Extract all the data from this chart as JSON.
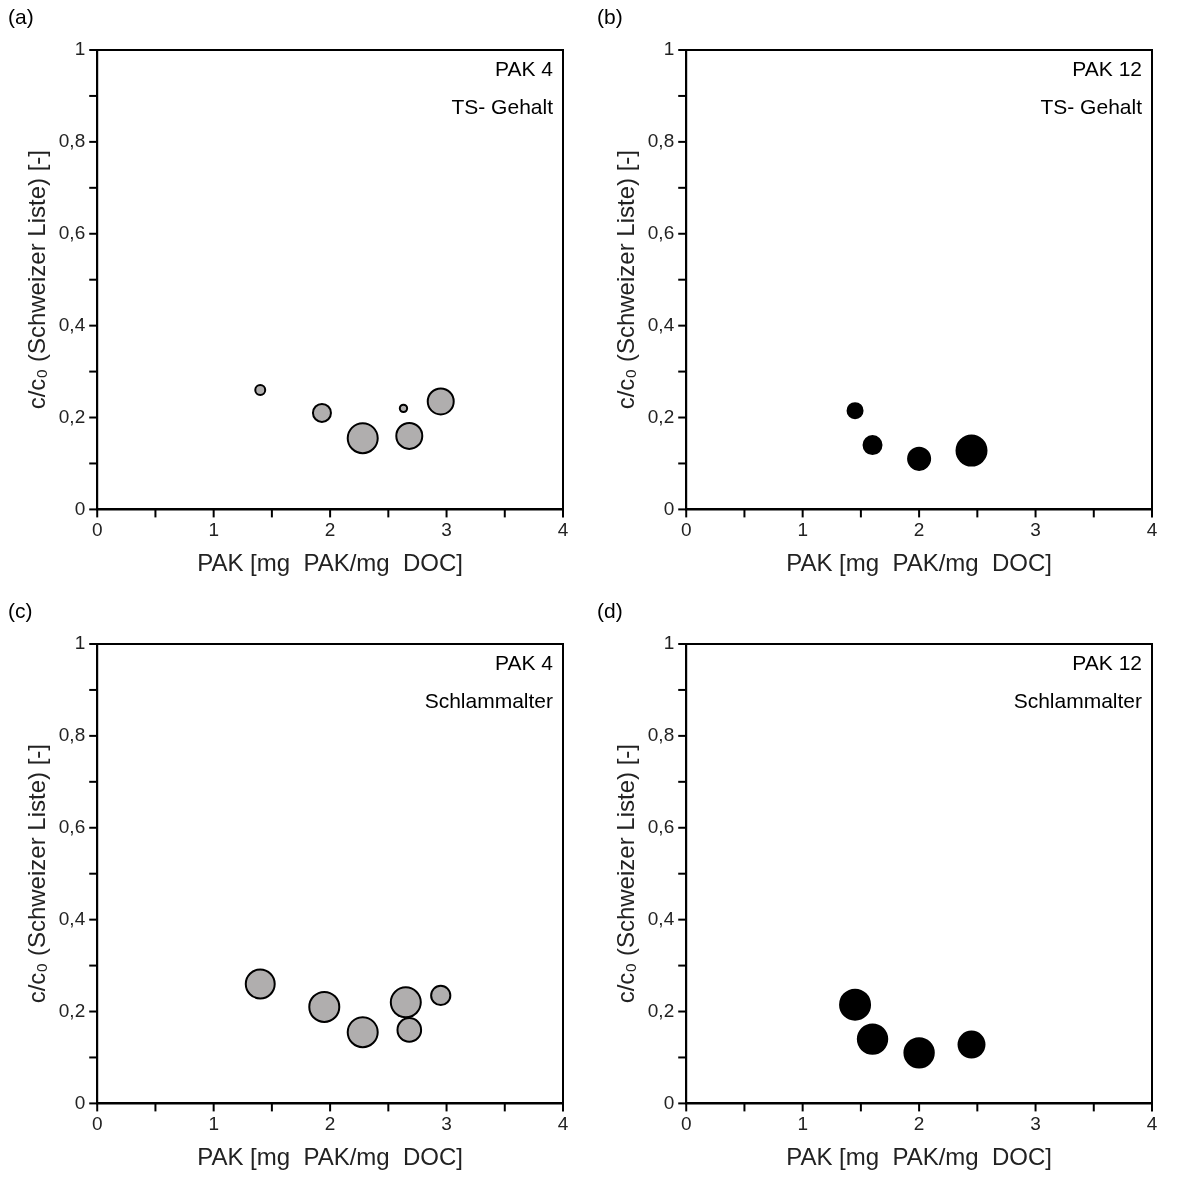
{
  "chart_data": [
    {
      "type": "bubble",
      "annotations": [
        "(a)",
        "PAK 4",
        "TS- Gehalt"
      ],
      "xlabel": "PAK [mg  PAK/mg  DOC]",
      "ylabel": "c/c₀ (Schweizer Liste) [-]",
      "xlim": [
        0,
        4
      ],
      "ylim": [
        0,
        1
      ],
      "xticks": [
        {
          "value": 0,
          "label": "0"
        },
        {
          "value": 0.5,
          "label": null
        },
        1,
        {
          "value": 1.5,
          "label": null
        },
        2,
        {
          "value": 2.5,
          "label": null
        },
        3,
        {
          "value": 3.5,
          "label": null
        },
        4
      ],
      "yticks": [
        {
          "value": 0,
          "label": "0"
        },
        {
          "value": 0.1,
          "label": null
        },
        {
          "value": 0.2,
          "label": "0,2"
        },
        {
          "value": 0.3,
          "label": null
        },
        {
          "value": 0.4,
          "label": "0,4"
        },
        {
          "value": 0.5,
          "label": null
        },
        {
          "value": 0.6,
          "label": "0,6"
        },
        {
          "value": 0.7,
          "label": null
        },
        {
          "value": 0.8,
          "label": "0,8"
        },
        {
          "value": 0.9,
          "label": null
        },
        {
          "value": 1,
          "label": "1"
        }
      ],
      "series": [
        {
          "color": "#b0aeae",
          "x": [
            1.4,
            1.93,
            2.28,
            2.63,
            2.68,
            2.95
          ],
          "values": [
            0.26,
            0.21,
            0.155,
            0.22,
            0.16,
            0.235
          ],
          "sizes": [
            0.11,
            0.36,
            1,
            0.06,
            0.75,
            0.75
          ]
        }
      ]
    },
    {
      "type": "bubble",
      "annotations": [
        "(b)",
        "PAK 12",
        "TS- Gehalt"
      ],
      "xlabel": "PAK [mg  PAK/mg  DOC]",
      "ylabel": "c/c₀ (Schweizer Liste) [-]",
      "xlim": [
        0,
        4
      ],
      "ylim": [
        0,
        1
      ],
      "xticks": [
        {
          "value": 0,
          "label": "0"
        },
        {
          "value": 0.5,
          "label": null
        },
        1,
        {
          "value": 1.5,
          "label": null
        },
        2,
        {
          "value": 2.5,
          "label": null
        },
        3,
        {
          "value": 3.5,
          "label": null
        },
        4
      ],
      "yticks": [
        {
          "value": 0,
          "label": "0"
        },
        {
          "value": 0.1,
          "label": null
        },
        {
          "value": 0.2,
          "label": "0,2"
        },
        {
          "value": 0.3,
          "label": null
        },
        {
          "value": 0.4,
          "label": "0,4"
        },
        {
          "value": 0.5,
          "label": null
        },
        {
          "value": 0.6,
          "label": "0,6"
        },
        {
          "value": 0.7,
          "label": null
        },
        {
          "value": 0.8,
          "label": "0,8"
        },
        {
          "value": 0.9,
          "label": null
        },
        {
          "value": 1,
          "label": "1"
        }
      ],
      "series": [
        {
          "color": "#000000",
          "x": [
            1.45,
            1.6,
            2.0,
            2.45
          ],
          "values": [
            0.215,
            0.14,
            0.11,
            0.128
          ],
          "sizes": [
            0.25,
            0.36,
            0.54,
            1
          ]
        }
      ]
    },
    {
      "type": "bubble",
      "annotations": [
        "(c)",
        "PAK 4",
        "Schlammalter"
      ],
      "xlabel": "PAK [mg  PAK/mg  DOC]",
      "ylabel": "c/c₀ (Schweizer Liste) [-]",
      "xlim": [
        0,
        4
      ],
      "ylim": [
        0,
        1
      ],
      "xticks": [
        {
          "value": 0,
          "label": "0"
        },
        {
          "value": 0.5,
          "label": null
        },
        1,
        {
          "value": 1.5,
          "label": null
        },
        2,
        {
          "value": 2.5,
          "label": null
        },
        3,
        {
          "value": 3.5,
          "label": null
        },
        4
      ],
      "yticks": [
        {
          "value": 0,
          "label": "0"
        },
        {
          "value": 0.1,
          "label": null
        },
        {
          "value": 0.2,
          "label": "0,2"
        },
        {
          "value": 0.3,
          "label": null
        },
        {
          "value": 0.4,
          "label": "0,4"
        },
        {
          "value": 0.5,
          "label": null
        },
        {
          "value": 0.6,
          "label": "0,6"
        },
        {
          "value": 0.7,
          "label": null
        },
        {
          "value": 0.8,
          "label": "0,8"
        },
        {
          "value": 0.9,
          "label": null
        },
        {
          "value": 1,
          "label": "1"
        }
      ],
      "series": [
        {
          "color": "#b0aeae",
          "x": [
            1.4,
            1.95,
            2.28,
            2.65,
            2.68,
            2.95
          ],
          "values": [
            0.26,
            0.21,
            0.155,
            0.22,
            0.16,
            0.235
          ],
          "sizes": [
            0.93,
            1,
            1,
            1,
            0.62,
            0.41
          ]
        }
      ]
    },
    {
      "type": "bubble",
      "annotations": [
        "(d)",
        "PAK 12",
        "Schlammalter"
      ],
      "xlabel": "PAK [mg  PAK/mg  DOC]",
      "ylabel": "c/c₀ (Schweizer Liste) [-]",
      "xlim": [
        0,
        4
      ],
      "ylim": [
        0,
        1
      ],
      "xticks": [
        {
          "value": 0,
          "label": "0"
        },
        {
          "value": 0.5,
          "label": null
        },
        1,
        {
          "value": 1.5,
          "label": null
        },
        2,
        {
          "value": 2.5,
          "label": null
        },
        3,
        {
          "value": 3.5,
          "label": null
        },
        4
      ],
      "yticks": [
        {
          "value": 0,
          "label": "0"
        },
        {
          "value": 0.1,
          "label": null
        },
        {
          "value": 0.2,
          "label": "0,2"
        },
        {
          "value": 0.3,
          "label": null
        },
        {
          "value": 0.4,
          "label": "0,4"
        },
        {
          "value": 0.5,
          "label": null
        },
        {
          "value": 0.6,
          "label": "0,6"
        },
        {
          "value": 0.7,
          "label": null
        },
        {
          "value": 0.8,
          "label": "0,8"
        },
        {
          "value": 0.9,
          "label": null
        },
        {
          "value": 1,
          "label": "1"
        }
      ],
      "series": [
        {
          "color": "#000000",
          "x": [
            1.45,
            1.6,
            2.0,
            2.45
          ],
          "values": [
            0.215,
            0.14,
            0.11,
            0.128
          ],
          "sizes": [
            1,
            0.96,
            0.96,
            0.75
          ]
        }
      ]
    }
  ]
}
